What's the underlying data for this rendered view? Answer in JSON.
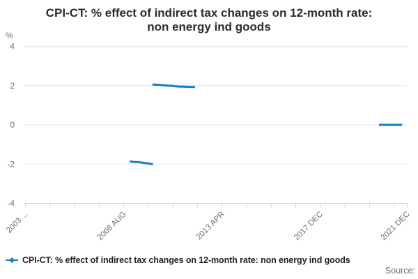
{
  "title": {
    "line1": "CPI-CT: % effect of indirect tax changes on 12-month rate:",
    "line2": "non energy ind goods"
  },
  "footer": {
    "source_label": "Source:"
  },
  "theme": {
    "series_blue": "#1280c4",
    "grid_line": "#e6e6e6",
    "axis_line": "#c9d3e2",
    "axis_text": "#6f6f6f",
    "title_text": "#2b2b2b",
    "legend_text": "#222222",
    "source_text": "#707070"
  },
  "chart_data": {
    "type": "line",
    "title": "CPI-CT: % effect of indirect tax changes on 12-month rate: non energy ind goods",
    "unit": "%",
    "ylabel": "%",
    "ylim": [
      -4,
      4
    ],
    "y_ticks": [
      4,
      2,
      0,
      -2,
      -4
    ],
    "grid": true,
    "legend_position": "bottom-left",
    "x_range_years": [
      2003.917,
      2022.04
    ],
    "x_tick_interval_months": 14,
    "x_tick_count": 16,
    "x_tick_labels": [
      {
        "tick": 0,
        "text": "2003 ..."
      },
      {
        "tick": 4,
        "text": "2008 AUG"
      },
      {
        "tick": 8,
        "text": "2013 APR"
      },
      {
        "tick": 12,
        "text": "2017 DEC"
      },
      {
        "tick": "end",
        "text": "2021 DEC"
      }
    ],
    "series": [
      {
        "name": "CPI-CT: % effect of indirect tax changes on 12-month rate: non energy ind goods",
        "color": "#1280c4",
        "marker": "square",
        "segments": [
          {
            "start_x": 2008.917,
            "step_months": 1,
            "values": [
              -1.87,
              -1.88,
              -1.89,
              -1.9,
              -1.9,
              -1.91,
              -1.92,
              -1.93,
              -1.95,
              -1.96,
              -1.97,
              -1.98,
              -2.0
            ]
          },
          {
            "start_x": 2010.0,
            "step_months": 1,
            "values": [
              2.05,
              2.05,
              2.04,
              2.04,
              2.03,
              2.02,
              2.02,
              2.01,
              2.0,
              2.0,
              1.99,
              1.98,
              1.97,
              1.96,
              1.96,
              1.95,
              1.95,
              1.95,
              1.94,
              1.94,
              1.94,
              1.93,
              1.93,
              1.93
            ]
          },
          {
            "start_x": 2020.75,
            "step_months": 1,
            "values": [
              0.0,
              0.0,
              0.0,
              0.0,
              0.0,
              0.0,
              0.0,
              0.0,
              0.0,
              0.0,
              0.0,
              0.0,
              0.0
            ]
          }
        ]
      }
    ]
  }
}
